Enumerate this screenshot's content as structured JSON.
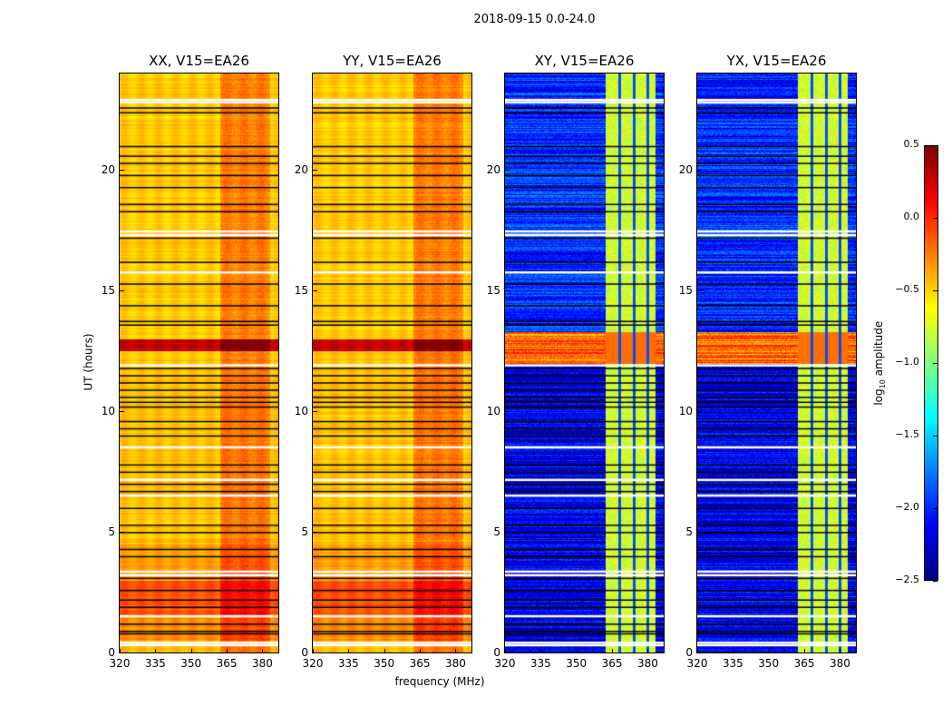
{
  "chart_data": {
    "type": "heatmap",
    "title": "2018-09-15 0.0-24.0",
    "xlabel": "frequency (MHz)",
    "ylabel": "UT (hours)",
    "xlim": [
      320,
      386.7
    ],
    "ylim": [
      0,
      24
    ],
    "xticks": [
      "320",
      "335",
      "350",
      "365",
      "380"
    ],
    "xtick_values": [
      320,
      335,
      350,
      365,
      380
    ],
    "yticks": [
      "0",
      "5",
      "10",
      "15",
      "20"
    ],
    "ytick_values": [
      0,
      5,
      10,
      15,
      20
    ],
    "colorbar": {
      "label_main": "log",
      "label_sub": "10",
      "label_rest": " amplitude",
      "colormap": "jet",
      "range": [
        -2.5,
        0.5
      ],
      "ticks": [
        "0.5",
        "0.0",
        "−0.5",
        "−1.0",
        "−1.5",
        "−2.0",
        "−2.5"
      ],
      "tick_values": [
        0.5,
        0.0,
        -0.5,
        -1.0,
        -1.5,
        -2.0,
        -2.5
      ]
    },
    "rfi_band_mhz": [
      362,
      383
    ],
    "flagged_white_hours": [
      0.35,
      0.45,
      1.55,
      3.25,
      3.4,
      8.55,
      15.8,
      17.35,
      17.5,
      22.85,
      22.95,
      11.95,
      7.2,
      6.55
    ],
    "flagged_black_hours": [
      0.8,
      0.9,
      1.2,
      1.9,
      2.2,
      2.6,
      3.1,
      4.0,
      4.3,
      5.0,
      5.3,
      6.0,
      6.7,
      7.0,
      7.5,
      7.8,
      9.0,
      9.3,
      9.6,
      10.2,
      10.4,
      10.6,
      10.9,
      11.2,
      11.5,
      11.8,
      13.6,
      13.75,
      14.4,
      15.3,
      16.2,
      17.2,
      18.3,
      18.6,
      19.3,
      19.8,
      20.3,
      20.6,
      21.0,
      22.4,
      22.6
    ],
    "panels": [
      {
        "title": "XX, V15=EA26",
        "bands": [
          [
            0,
            0.5,
            -0.45
          ],
          [
            0.5,
            1.5,
            -0.3
          ],
          [
            1.5,
            3.0,
            -0.12
          ],
          [
            3.0,
            4.5,
            -0.35
          ],
          [
            4.5,
            12.5,
            -0.45
          ],
          [
            12.5,
            13.0,
            0.3
          ],
          [
            13.0,
            24,
            -0.47
          ]
        ],
        "rfi_offset": 0.25,
        "gap_level": null
      },
      {
        "title": "YY, V15=EA26",
        "bands": [
          [
            0,
            0.5,
            -0.45
          ],
          [
            0.5,
            1.5,
            -0.3
          ],
          [
            1.5,
            3.0,
            -0.12
          ],
          [
            3.0,
            4.5,
            -0.35
          ],
          [
            4.5,
            12.5,
            -0.45
          ],
          [
            12.5,
            13.0,
            0.3
          ],
          [
            13.0,
            24,
            -0.47
          ]
        ],
        "rfi_offset": 0.25,
        "gap_level": null
      },
      {
        "title": "XY, V15=EA26",
        "bands": [
          [
            0,
            12,
            -2.2
          ],
          [
            12,
            13.3,
            -0.2
          ],
          [
            13.3,
            24,
            -2.0
          ]
        ],
        "rfi_level": -0.75,
        "gap_level": -1.9
      },
      {
        "title": "YX, V15=EA26",
        "bands": [
          [
            0,
            12,
            -2.2
          ],
          [
            12,
            13.3,
            -0.2
          ],
          [
            13.3,
            24,
            -2.0
          ]
        ],
        "rfi_level": -0.75,
        "gap_level": -1.9
      }
    ]
  }
}
